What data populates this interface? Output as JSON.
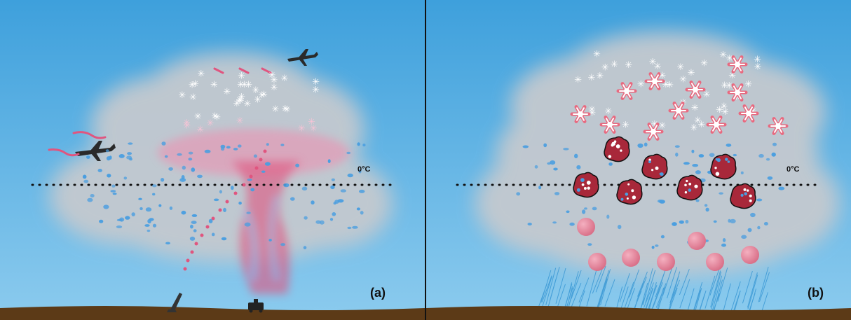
{
  "panels": [
    {
      "id": "a",
      "label": "(a)",
      "freezing_label": "0°C"
    },
    {
      "id": "b",
      "label": "(b)",
      "freezing_label": "0°C"
    }
  ],
  "colors": {
    "sky": "#64b4e6",
    "cloud": "#c4c9cf",
    "ground": "#5c3a17",
    "droplet": "#4a9ee0",
    "seeding": "#e0557f",
    "graupel": "#a8283a",
    "raindrop": "#e0859a",
    "rain": "#2b8fd0"
  },
  "icons": {
    "aircraft": "airplane-silhouette-icon",
    "rocket": "rocket-launcher-icon",
    "ground_generator": "ground-generator-icon",
    "ice_crystal": "ice-crystal-icon",
    "seeded_crystal": "seeded-ice-crystal-icon",
    "graupel": "graupel-icon",
    "raindrop": "large-raindrop-icon"
  }
}
